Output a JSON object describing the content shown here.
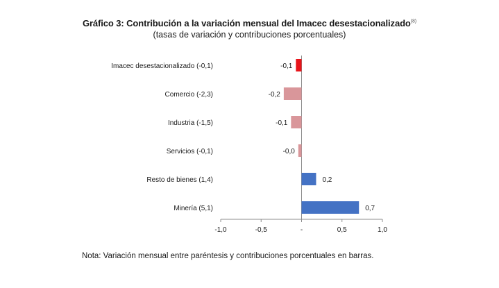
{
  "chart_data": {
    "type": "bar",
    "orientation": "horizontal",
    "title": "Gráfico 3: Contribución a la variación mensual del Imacec desestacionalizado",
    "title_superscript": "(8)",
    "subtitle": "(tasas de variación y contribuciones porcentuales)",
    "categories": [
      "Imacec desestacionalizado (-0,1)",
      "Comercio (-2,3)",
      "Industria (-1,5)",
      "Servicios (-0,1)",
      "Resto de bienes (1,4)",
      "Minería (5,1)"
    ],
    "values": [
      -0.07,
      -0.22,
      -0.13,
      -0.04,
      0.18,
      0.71
    ],
    "data_labels": [
      "-0,1",
      "-0,2",
      "-0,1",
      "-0,0",
      "0,2",
      "0,7"
    ],
    "bar_colors": [
      "#e8141a",
      "#d9969a",
      "#d9969a",
      "#d9969a",
      "#4472c4",
      "#4472c4"
    ],
    "xlim": [
      -1.0,
      1.0
    ],
    "x_ticks": [
      -1.0,
      -0.5,
      0,
      0.5,
      1.0
    ],
    "x_tick_labels": [
      "-1,0",
      "-0,5",
      "-",
      "0,5",
      "1,0"
    ],
    "grid": false,
    "legend": "none"
  },
  "note": "Nota: Variación mensual entre paréntesis y contribuciones porcentuales en barras."
}
